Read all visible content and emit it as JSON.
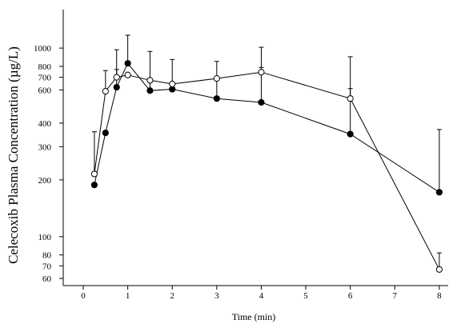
{
  "chart_data": {
    "type": "line",
    "title": "",
    "xlabel": "Time (min)",
    "ylabel": "Celecoxib Plasma Concentration (µg/L)",
    "x_ticks": [
      0,
      1,
      2,
      3,
      4,
      5,
      6,
      7,
      8
    ],
    "y_ticks": [
      60,
      70,
      80,
      100,
      200,
      300,
      400,
      600,
      700,
      800,
      1000
    ],
    "xlim": [
      -0.45,
      8.2
    ],
    "ylim": [
      55,
      1600
    ],
    "y_scale": "log",
    "grid": false,
    "legend": "none",
    "series": [
      {
        "marker": "filled-circle",
        "x": [
          0.25,
          0.5,
          0.75,
          1,
          1.5,
          2,
          3,
          4,
          6,
          8
        ],
        "values": [
          188,
          355,
          620,
          830,
          595,
          605,
          540,
          515,
          350,
          172
        ],
        "error_upper": [
          null,
          null,
          770,
          1170,
          960,
          870,
          850,
          790,
          610,
          370
        ]
      },
      {
        "marker": "open-circle",
        "x": [
          0.25,
          0.5,
          0.75,
          1,
          1.5,
          2,
          3,
          4,
          6,
          8
        ],
        "values": [
          215,
          590,
          700,
          720,
          675,
          645,
          690,
          745,
          540,
          67
        ],
        "error_upper": [
          360,
          760,
          980,
          null,
          null,
          null,
          null,
          1010,
          900,
          82
        ]
      }
    ]
  }
}
